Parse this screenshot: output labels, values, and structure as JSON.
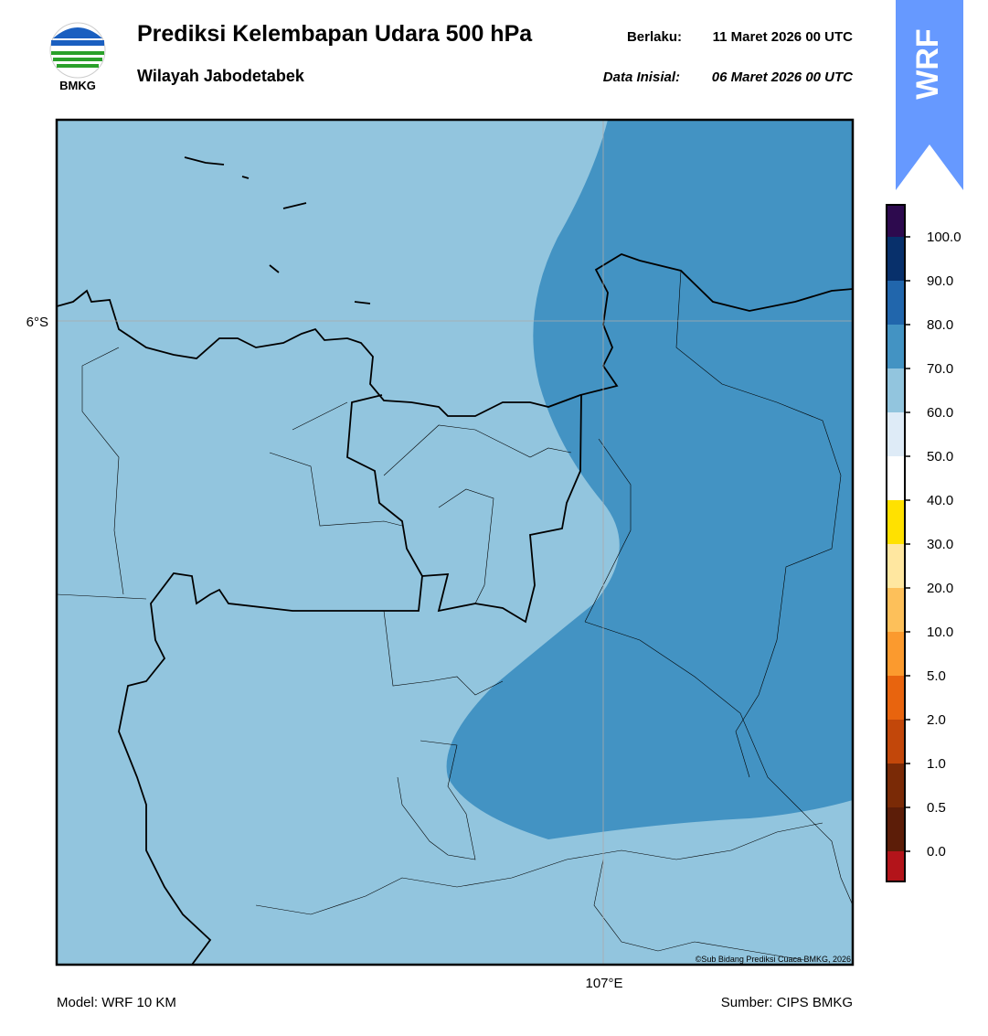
{
  "header": {
    "title": "Prediksi Kelembapan Udara 500 hPa",
    "subtitle": "Wilayah Jabodetabek",
    "valid_label": "Berlaku:",
    "valid_date": "11 Maret 2026 00 UTC",
    "init_label": "Data Inisial:",
    "init_date": "06 Maret 2026 00 UTC",
    "logo_text": "BMKG"
  },
  "map": {
    "lat_label": "6°S",
    "lon_label": "107°E",
    "credit": "©Sub Bidang Prediksi Cuaca BMKG, 2026"
  },
  "colorbar": {
    "labels": [
      "100.0",
      "90.0",
      "80.0",
      "70.0",
      "60.0",
      "50.0",
      "40.0",
      "30.0",
      "20.0",
      "10.0",
      "5.0",
      "2.0",
      "1.0",
      "0.5",
      "0.0"
    ],
    "colors": [
      "#2d0a4e",
      "#08306b",
      "#2166ac",
      "#4393c3",
      "#92c5de",
      "#deebf7",
      "#ffffff",
      "#ffe100",
      "#ffe7a0",
      "#fdc05a",
      "#fb9a2e",
      "#e8640e",
      "#c2470a",
      "#7a2a06",
      "#5c1d08",
      "#b3141a",
      "#e8372a"
    ]
  },
  "badge": "WRF",
  "footer": {
    "model": "Model: WRF 10 KM",
    "source": "Sumber: CIPS BMKG"
  }
}
